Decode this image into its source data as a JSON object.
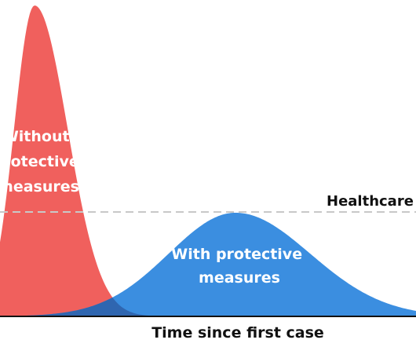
{
  "curves": {
    "without_measures": {
      "label_lines": [
        "Without",
        "protective",
        "measures"
      ],
      "color": "#f0605d"
    },
    "with_measures": {
      "label_lines": [
        "With protective",
        "measures"
      ],
      "color": "#3b8ee0"
    },
    "overlap_color": "#2f66b0"
  },
  "healthcare_line": {
    "label": "Healthcare s",
    "color": "#c8c8c8"
  },
  "x_axis": {
    "label": "Time since first case",
    "color": "#111111"
  }
}
